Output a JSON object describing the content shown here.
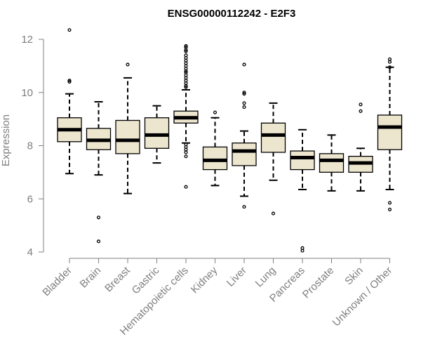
{
  "chart_data": {
    "type": "boxplot",
    "title": "ENSG00000112242 - E2F3",
    "ylabel": "Expression",
    "xlabel": "",
    "ylim": [
      4,
      12.3
    ],
    "yticks": [
      4,
      6,
      8,
      10,
      12
    ],
    "box_color": "#ede6cf",
    "categories": [
      "Bladder",
      "Brain",
      "Breast",
      "Gastric",
      "Hematopoietic cells",
      "Kidney",
      "Liver",
      "Lung",
      "Pancreas",
      "Prostate",
      "Skin",
      "Unknown / Other"
    ],
    "boxes": [
      {
        "name": "Bladder",
        "whisker_low": 6.95,
        "q1": 8.15,
        "median": 8.6,
        "q3": 9.05,
        "whisker_high": 9.95,
        "outliers": [
          12.35,
          10.45,
          10.4
        ]
      },
      {
        "name": "Brain",
        "whisker_low": 6.9,
        "q1": 7.85,
        "median": 8.2,
        "q3": 8.65,
        "whisker_high": 9.65,
        "outliers": [
          5.3,
          4.4
        ]
      },
      {
        "name": "Breast",
        "whisker_low": 6.2,
        "q1": 7.7,
        "median": 8.2,
        "q3": 8.95,
        "whisker_high": 10.55,
        "outliers": [
          11.05
        ]
      },
      {
        "name": "Gastric",
        "whisker_low": 7.35,
        "q1": 7.9,
        "median": 8.4,
        "q3": 9.05,
        "whisker_high": 9.5,
        "outliers": []
      },
      {
        "name": "Hematopoietic cells",
        "whisker_low": 8.1,
        "q1": 8.85,
        "median": 9.05,
        "q3": 9.3,
        "whisker_high": 10.1,
        "outliers": [
          11.75,
          11.7,
          11.6,
          11.55,
          11.4,
          11.3,
          11.2,
          11.1,
          11.0,
          10.9,
          10.8,
          10.75,
          10.65,
          10.55,
          10.45,
          10.35,
          10.25,
          10.2,
          8.05,
          7.95,
          7.85,
          7.75,
          7.6,
          6.45
        ]
      },
      {
        "name": "Kidney",
        "whisker_low": 6.5,
        "q1": 7.1,
        "median": 7.45,
        "q3": 7.95,
        "whisker_high": 9.05,
        "outliers": [
          9.25
        ]
      },
      {
        "name": "Liver",
        "whisker_low": 6.1,
        "q1": 7.25,
        "median": 7.8,
        "q3": 8.1,
        "whisker_high": 8.55,
        "outliers": [
          11.05,
          10.0,
          9.95,
          9.6,
          9.45,
          5.7
        ]
      },
      {
        "name": "Lung",
        "whisker_low": 6.7,
        "q1": 7.75,
        "median": 8.4,
        "q3": 8.85,
        "whisker_high": 9.6,
        "outliers": [
          5.45
        ]
      },
      {
        "name": "Pancreas",
        "whisker_low": 6.35,
        "q1": 7.1,
        "median": 7.55,
        "q3": 7.8,
        "whisker_high": 8.6,
        "outliers": [
          4.15,
          4.05
        ]
      },
      {
        "name": "Prostate",
        "whisker_low": 6.3,
        "q1": 7.0,
        "median": 7.45,
        "q3": 7.7,
        "whisker_high": 8.4,
        "outliers": []
      },
      {
        "name": "Skin",
        "whisker_low": 6.3,
        "q1": 7.0,
        "median": 7.35,
        "q3": 7.6,
        "whisker_high": 7.9,
        "outliers": [
          9.55,
          9.3
        ]
      },
      {
        "name": "Unknown / Other",
        "whisker_low": 6.35,
        "q1": 7.85,
        "median": 8.7,
        "q3": 9.15,
        "whisker_high": 10.95,
        "outliers": [
          11.25,
          11.15,
          10.95,
          5.85,
          5.6
        ]
      }
    ]
  }
}
